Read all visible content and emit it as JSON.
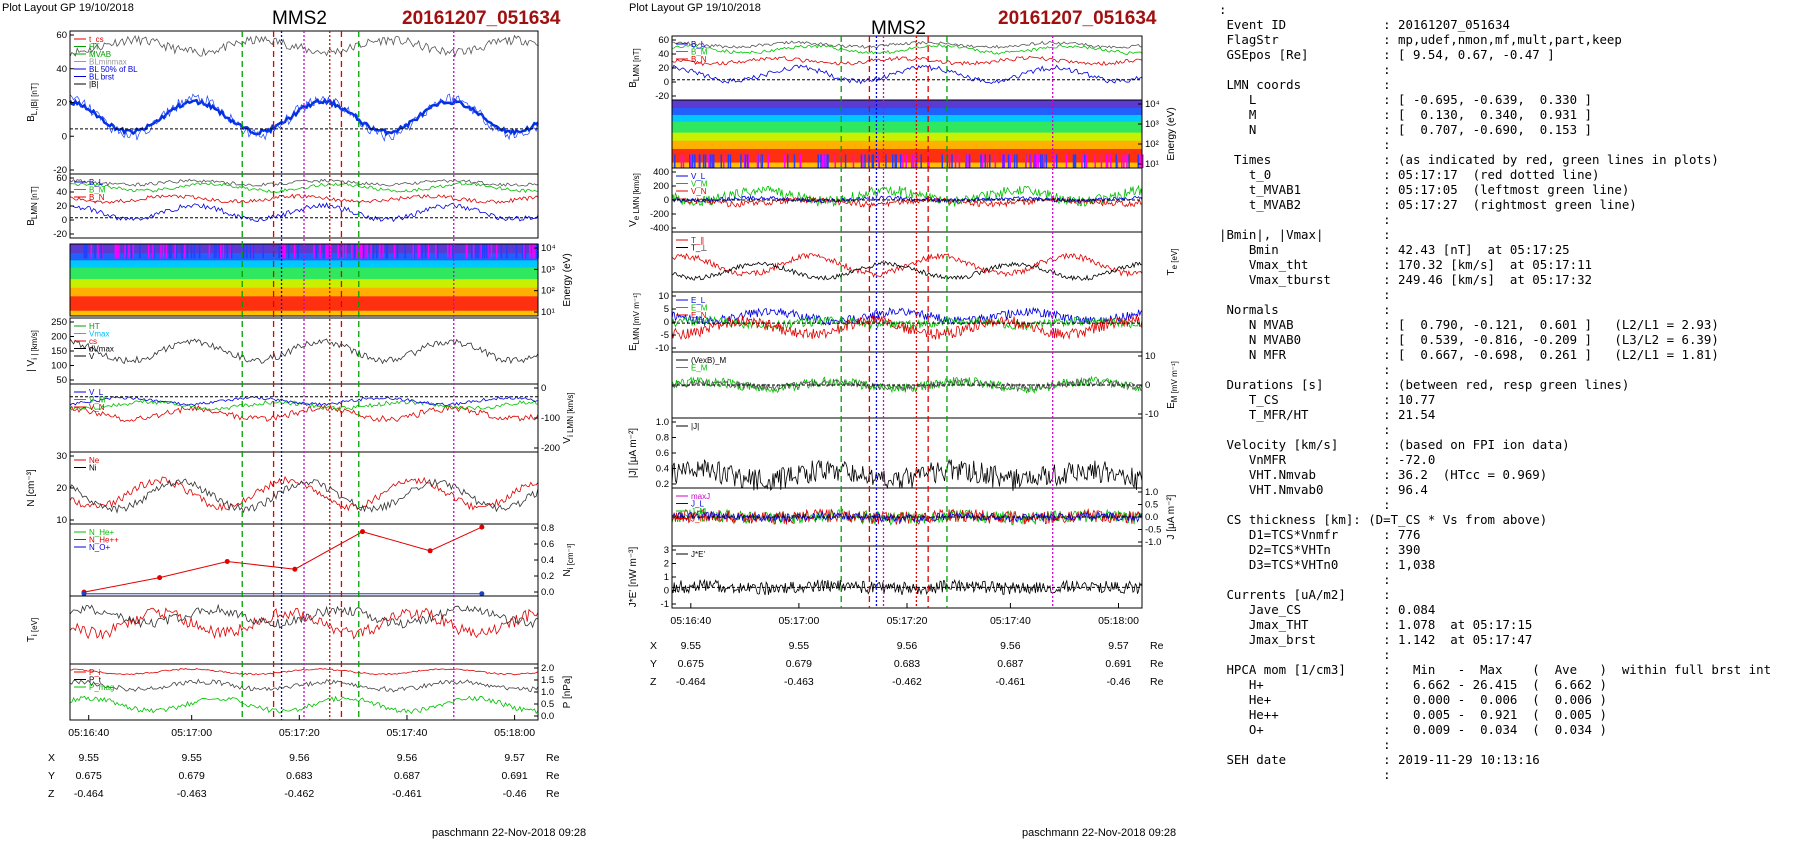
{
  "left": {
    "layout_label": "Plot Layout GP 19/10/2018",
    "spacecraft": "MMS2",
    "event": "20161207_051634",
    "footer": "paschmann 22-Nov-2018 09:28",
    "time_ticks": [
      "05:16:40",
      "05:17:00",
      "05:17:20",
      "05:17:40",
      "05:18:00"
    ],
    "orbit_labels": [
      "X",
      "Y",
      "Z"
    ],
    "orbit_rows": [
      [
        "9.55",
        "9.55",
        "9.56",
        "9.56",
        "9.57"
      ],
      [
        "0.675",
        "0.679",
        "0.683",
        "0.687",
        "0.691"
      ],
      [
        "-0.464",
        "-0.463",
        "-0.462",
        "-0.461",
        "-0.46"
      ]
    ],
    "orbit_unit": "Re",
    "panels": [
      {
        "ylabel": "B_L,|B| [nT]",
        "ylabel_side": "left",
        "ticks": [
          "60",
          "40",
          "20",
          "0",
          "-20"
        ],
        "legend": [
          "t_cs",
          "HT",
          "MVAB",
          "BLminmax",
          "BL 50% of BL",
          "BL brst",
          "|B|"
        ]
      },
      {
        "ylabel": "B_LMN [nT]",
        "ylabel_side": "left",
        "ticks": [
          "60",
          "40",
          "20",
          "0",
          "-20"
        ],
        "legend": [
          "B_L",
          "B_M",
          "B_N"
        ]
      },
      {
        "ylabel": "Energy (eV)",
        "ylabel_side": "right",
        "ticks": [
          "10⁴",
          "10³",
          "10²",
          "10¹"
        ],
        "legend": []
      },
      {
        "ylabel": "| V_i | [km/s]",
        "ylabel_side": "left",
        "ticks": [
          "250",
          "200",
          "150",
          "100",
          "50"
        ],
        "legend": [
          "HT",
          "Vmax",
          "cs",
          "dVmax",
          "V"
        ]
      },
      {
        "ylabel": "V_i LMN [km/s]",
        "ylabel_side": "right",
        "ticks": [
          "0",
          "-100",
          "-200"
        ],
        "legend": [
          "V_L",
          "V_M",
          "V_N"
        ]
      },
      {
        "ylabel": "N [cm⁻³]",
        "ylabel_side": "left",
        "ticks": [
          "30",
          "20",
          "10"
        ],
        "legend": [
          "Ne",
          "Ni"
        ]
      },
      {
        "ylabel": "N_i [cm⁻³]",
        "ylabel_side": "right",
        "ticks": [
          "0.8",
          "0.6",
          "0.4",
          "0.2",
          "0.0"
        ],
        "legend": [
          "N_He+",
          "N_He++",
          "N_O+"
        ]
      },
      {
        "ylabel": "T_i [eV]",
        "ylabel_side": "left",
        "ticks": [],
        "legend": []
      },
      {
        "ylabel": "P [nPa]",
        "ylabel_side": "right",
        "ticks": [
          "2.0",
          "1.5",
          "1.0",
          "0.5",
          "0.0"
        ],
        "legend": [
          "P_i",
          "P_t",
          "P_mag"
        ]
      }
    ]
  },
  "middle": {
    "layout_label": "Plot Layout GP 19/10/2018",
    "spacecraft": "MMS2",
    "event": "20161207_051634",
    "footer": "paschmann 22-Nov-2018 09:28",
    "time_ticks": [
      "05:16:40",
      "05:17:00",
      "05:17:20",
      "05:17:40",
      "05:18:00"
    ],
    "orbit_labels": [
      "X",
      "Y",
      "Z"
    ],
    "orbit_rows": [
      [
        "9.55",
        "9.55",
        "9.56",
        "9.56",
        "9.57"
      ],
      [
        "0.675",
        "0.679",
        "0.683",
        "0.687",
        "0.691"
      ],
      [
        "-0.464",
        "-0.463",
        "-0.462",
        "-0.461",
        "-0.46"
      ]
    ],
    "orbit_unit": "Re",
    "panels": [
      {
        "ylabel": "B_LMN [nT]",
        "ylabel_side": "left",
        "ticks": [
          "60",
          "40",
          "20",
          "0",
          "-20"
        ],
        "legend": [
          "B_L",
          "B_M",
          "B_N"
        ]
      },
      {
        "ylabel": "Energy (eV)",
        "ylabel_side": "right",
        "ticks": [
          "10⁴",
          "10³",
          "10²",
          "10¹"
        ],
        "legend": []
      },
      {
        "ylabel": "V_e LMN [km/s]",
        "ylabel_side": "left",
        "ticks": [
          "400",
          "200",
          "0",
          "-200",
          "-400"
        ],
        "legend": [
          "V_L",
          "V_M",
          "V_N"
        ]
      },
      {
        "ylabel": "T_e [eV]",
        "ylabel_side": "right",
        "ticks": [],
        "legend": [
          "T_∥",
          "T_⊥"
        ]
      },
      {
        "ylabel": "E_LMN [mV m⁻¹]",
        "ylabel_side": "left",
        "ticks": [
          "10",
          "5",
          "0",
          "-5",
          "-10"
        ],
        "legend": [
          "E_L",
          "E_M",
          "E_N"
        ]
      },
      {
        "ylabel": "E_M [mV m⁻¹]",
        "ylabel_side": "right",
        "ticks": [
          "10",
          "0",
          "-10"
        ],
        "legend": [
          "(VexB)_M",
          "E_M"
        ]
      },
      {
        "ylabel": "|J| [μA m⁻²]",
        "ylabel_side": "left",
        "ticks": [
          "1.0",
          "0.8",
          "0.6",
          "0.4",
          "0.2"
        ],
        "legend": [
          "|J|"
        ]
      },
      {
        "ylabel": "J [μA m⁻²]",
        "ylabel_side": "right",
        "ticks": [
          "1.0",
          "0.5",
          "0.0",
          "-0.5",
          "-1.0"
        ],
        "legend": [
          "maxJ",
          "J_L",
          "J_M",
          "J_N"
        ]
      },
      {
        "ylabel": "J*E' [nW m⁻³]",
        "ylabel_side": "left",
        "ticks": [
          "3",
          "2",
          "1",
          "0",
          "-1"
        ],
        "legend": [
          "J*E'"
        ]
      }
    ]
  },
  "info_lines": [
    ":",
    " Event ID             : 20161207_051634",
    " FlagStr              : mp,udef,nmon,mf,mult,part,keep",
    " GSEpos [Re]          : [ 9.54, 0.67, -0.47 ]",
    "                      :",
    " LMN coords           :",
    "    L                 : [ -0.695, -0.639,  0.330 ]",
    "    M                 : [  0.130,  0.340,  0.931 ]",
    "    N                 : [  0.707, -0.690,  0.153 ]",
    "                      :",
    "  Times               : (as indicated by red, green lines in plots)",
    "    t_0               : 05:17:17  (red dotted line)",
    "    t_MVAB1           : 05:17:05  (leftmost green line)",
    "    t_MVAB2           : 05:17:27  (rightmost green line)",
    "                      :",
    "|Bmin|, |Vmax|        :",
    "    Bmin              : 42.43 [nT]  at 05:17:25",
    "    Vmax_tht          : 170.32 [km/s]  at 05:17:11",
    "    Vmax_tburst       : 249.46 [km/s]  at 05:17:32",
    "                      :",
    " Normals              :",
    "    N MVAB            : [  0.790, -0.121,  0.601 ]   (L2/L1 = 2.93)",
    "    N MVAB0           : [  0.539, -0.816, -0.209 ]   (L3/L2 = 6.39)",
    "    N MFR             : [  0.667, -0.698,  0.261 ]   (L2/L1 = 1.81)",
    "                      :",
    " Durations [s]        : (between red, resp green lines)",
    "    T_CS              : 10.77",
    "    T_MFR/HT          : 21.54",
    "                      :",
    " Velocity [km/s]      : (based on FPI ion data)",
    "    VnMFR             : -72.0",
    "    VHT.Nmvab         : 36.2  (HTcc = 0.969)",
    "    VHT.Nmvab0        : 96.4",
    "                      :",
    " CS thickness [km]: (D=T_CS * Vs from above)",
    "    D1=TCS*Vnmfr      : 776",
    "    D2=TCS*VHTn       : 390",
    "    D3=TCS*VHTn0      : 1,038",
    "                      :",
    " Currents [uA/m2]     :",
    "    Jave_CS           : 0.084",
    "    Jmax_THT          : 1.078  at 05:17:15",
    "    Jmax_brst         : 1.142  at 05:17:47",
    "                      :",
    " HPCA mom [1/cm3]     :   Min   -  Max    (  Ave   )  within full brst int",
    "    H+                :   6.662 - 26.415  (  6.662 )",
    "    He+               :   0.000 -  0.006  (  0.006 )",
    "    He++              :   0.005 -  0.921  (  0.005 )",
    "    O+                :   0.009 -  0.034  (  0.034 )",
    "                      :",
    " SEH date             : 2019-11-29 10:13:16",
    "                      :"
  ],
  "chart_data": [
    {
      "type": "line",
      "title": "MMS2 20161207_051634",
      "x_ticks": [
        "05:16:40",
        "05:17:00",
        "05:17:20",
        "05:17:40",
        "05:18:00"
      ],
      "x_range": [
        "05:16:34",
        "05:18:02"
      ],
      "panels": [
        "B_L,|B|",
        "B_LMN",
        "Energy spectrogram",
        "|V_i|",
        "V_i LMN",
        "N",
        "N_i (HPCA)",
        "T_i",
        "P"
      ],
      "reference_times": {
        "red_dotted": "05:17:17",
        "green_left": "05:17:05",
        "green_right": "05:17:27",
        "cs_red_left": "05:17:11",
        "cs_red_right": "05:17:22",
        "magenta": "05:17:13",
        "magenta_right": "05:17:47"
      },
      "series": [
        {
          "name": "N He++",
          "x": [
            "05:16:34",
            "05:16:44",
            "05:16:54",
            "05:17:04",
            "05:17:14",
            "05:17:24",
            "05:17:34",
            "05:17:44"
          ],
          "values": [
            0.03,
            0.22,
            0.43,
            0.33,
            0.82,
            0.57,
            0.88,
            0.33
          ]
        },
        {
          "name": "N He+",
          "x": [
            "05:16:34",
            "05:17:44"
          ],
          "values": [
            0.01,
            0.01
          ]
        },
        {
          "name": "N O+",
          "x": [
            "05:16:34",
            "05:17:44"
          ],
          "values": [
            0.01,
            0.01
          ]
        }
      ]
    },
    {
      "type": "line",
      "title": "MMS2 20161207_051634",
      "x_ticks": [
        "05:16:40",
        "05:17:00",
        "05:17:20",
        "05:17:40",
        "05:18:00"
      ],
      "panels": [
        "B_LMN",
        "Energy spectrogram",
        "V_e LMN",
        "T_e",
        "E_LMN",
        "E_M",
        "|J|",
        "J",
        "J*E'"
      ]
    }
  ],
  "colors": {
    "event": "#a01010",
    "L": "#0000e0",
    "M": "#00c000",
    "N": "#e00000",
    "total": "#000000",
    "green_line": "#00a000",
    "red_line": "#e00000",
    "magenta_line": "#d000d0",
    "blue_line": "#0000e0"
  }
}
